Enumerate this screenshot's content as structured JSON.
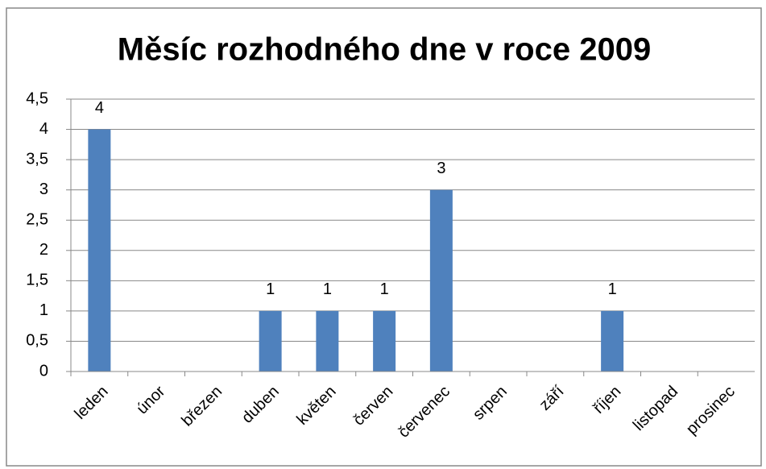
{
  "chart_data": {
    "type": "bar",
    "title": "Měsíc rozhodného dne v roce 2009",
    "categories": [
      "leden",
      "únor",
      "březen",
      "duben",
      "květen",
      "červen",
      "červenec",
      "srpen",
      "září",
      "říjen",
      "listopad",
      "prosinec"
    ],
    "values": [
      4,
      0,
      0,
      1,
      1,
      1,
      3,
      0,
      0,
      1,
      0,
      0
    ],
    "color": "#4f81bd",
    "ylim": [
      0,
      4.5
    ],
    "yticks": [
      0,
      {
        "value": 0.5,
        "label": "0,5"
      },
      1,
      {
        "value": 1.5,
        "label": "1,5"
      },
      2,
      {
        "value": 2.5,
        "label": "2,5"
      },
      3,
      {
        "value": 3.5,
        "label": "3,5"
      },
      4,
      {
        "value": 4.5,
        "label": "4,5"
      }
    ],
    "grid": true,
    "data_labels": true
  }
}
